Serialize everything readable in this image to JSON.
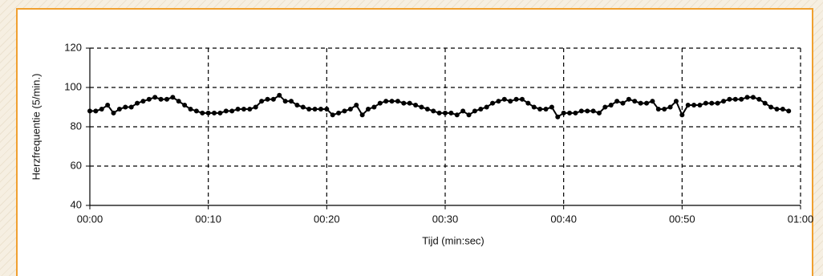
{
  "chart_data": {
    "type": "line",
    "x_label": "Tijd (min:sec)",
    "y_label": "Herzfrequentie (5/min.)",
    "x": [
      0,
      0.5,
      1,
      1.5,
      2,
      2.5,
      3,
      3.5,
      4,
      4.5,
      5,
      5.5,
      6,
      6.5,
      7,
      7.5,
      8,
      8.5,
      9,
      9.5,
      10,
      10.5,
      11,
      11.5,
      12,
      12.5,
      13,
      13.5,
      14,
      14.5,
      15,
      15.5,
      16,
      16.5,
      17,
      17.5,
      18,
      18.5,
      19,
      19.5,
      20,
      20.5,
      21,
      21.5,
      22,
      22.5,
      23,
      23.5,
      24,
      24.5,
      25,
      25.5,
      26,
      26.5,
      27,
      27.5,
      28,
      28.5,
      29,
      29.5,
      30,
      30.5,
      31,
      31.5,
      32,
      32.5,
      33,
      33.5,
      34,
      34.5,
      35,
      35.5,
      36,
      36.5,
      37,
      37.5,
      38,
      38.5,
      39,
      39.5,
      40,
      40.5,
      41,
      41.5,
      42,
      42.5,
      43,
      43.5,
      44,
      44.5,
      45,
      45.5,
      46,
      46.5,
      47,
      47.5,
      48,
      48.5,
      49,
      49.5,
      50,
      50.5,
      51,
      51.5,
      52,
      52.5,
      53,
      53.5,
      54,
      54.5,
      55,
      55.5,
      56,
      56.5,
      57,
      57.5,
      58,
      58.5,
      59
    ],
    "series": [
      {
        "name": "Herzfrequentie",
        "color": "#000000",
        "values": [
          88,
          88,
          89,
          91,
          87,
          89,
          90,
          90,
          92,
          93,
          94,
          95,
          94,
          94,
          95,
          93,
          91,
          89,
          88,
          87,
          87,
          87,
          87,
          88,
          88,
          89,
          89,
          89,
          90,
          93,
          94,
          94,
          96,
          93,
          93,
          91,
          90,
          89,
          89,
          89,
          89,
          86,
          87,
          88,
          89,
          91,
          86,
          89,
          90,
          92,
          93,
          93,
          93,
          92,
          92,
          91,
          90,
          89,
          88,
          87,
          87,
          87,
          86,
          88,
          86,
          88,
          89,
          90,
          92,
          93,
          94,
          93,
          94,
          94,
          92,
          90,
          89,
          89,
          90,
          85,
          87,
          87,
          87,
          88,
          88,
          88,
          87,
          90,
          91,
          93,
          92,
          94,
          93,
          92,
          92,
          93,
          89,
          89,
          90,
          93,
          86,
          91,
          91,
          91,
          92,
          92,
          92,
          93,
          94,
          94,
          94,
          95,
          95,
          94,
          92,
          90,
          89,
          89,
          88
        ]
      }
    ],
    "xlim": [
      0,
      60
    ],
    "xticks": [
      {
        "value": 0,
        "label": "00:00"
      },
      {
        "value": 10,
        "label": "00:10"
      },
      {
        "value": 20,
        "label": "00:20"
      },
      {
        "value": 30,
        "label": "00:30"
      },
      {
        "value": 40,
        "label": "00:40"
      },
      {
        "value": 50,
        "label": "00:50"
      },
      {
        "value": 60,
        "label": "01:00"
      }
    ],
    "ylim": [
      40,
      120
    ],
    "yticks": [
      40,
      60,
      80,
      100,
      120
    ],
    "grid": true
  }
}
